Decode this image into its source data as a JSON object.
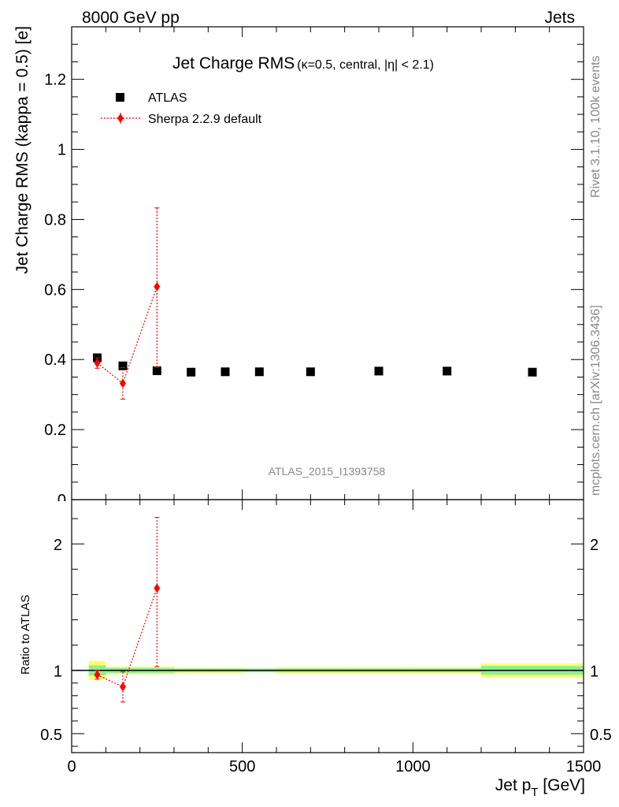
{
  "header": {
    "left": "8000 GeV pp",
    "right": "Jets",
    "title_main": "Jet Charge RMS",
    "title_sub": "(κ=0.5, central, |η| < 2.1)"
  },
  "side_labels": {
    "rivet": "Rivet 3.1.10,  100k events",
    "mcplots": "mcplots.cern.ch [arXiv:1306.3436]"
  },
  "watermark": "ATLAS_2015_I1393758",
  "legend": {
    "data": "ATLAS",
    "mc": "Sherpa 2.2.9 default"
  },
  "colors": {
    "data": "#000000",
    "mc": "#ff0000",
    "band_inner": "#90ee90",
    "band_outer": "#ffff66"
  },
  "chart_data": [
    {
      "type": "scatter",
      "ylabel": "Jet Charge RMS (kappa = 0.5) [e]",
      "xlim": [
        0,
        1500
      ],
      "ylim": [
        0,
        1.35
      ],
      "y_ticks": [
        "0.2",
        "0.4",
        "0.6",
        "0.8",
        "1",
        "1.2"
      ],
      "y_tick_values": [
        0.2,
        0.4,
        0.6,
        0.8,
        1.0,
        1.2
      ],
      "series": [
        {
          "name": "ATLAS",
          "x": [
            75,
            150,
            250,
            350,
            450,
            550,
            700,
            900,
            1100,
            1350
          ],
          "y": [
            0.405,
            0.382,
            0.368,
            0.364,
            0.365,
            0.365,
            0.365,
            0.367,
            0.367,
            0.364
          ]
        },
        {
          "name": "Sherpa 2.2.9 default",
          "x": [
            75,
            150,
            250
          ],
          "y": [
            0.39,
            0.332,
            0.608
          ],
          "yerr_low": [
            0.015,
            0.045,
            0.23
          ],
          "yerr_high": [
            0.015,
            0.045,
            0.225
          ]
        }
      ]
    },
    {
      "type": "scatter",
      "ylabel": "Ratio to ATLAS",
      "xlabel": "Jet p_T [GeV]",
      "xlim": [
        0,
        1500
      ],
      "ylim": [
        0.35,
        2.35
      ],
      "x_ticks": [
        "0",
        "500",
        "1000",
        "1500"
      ],
      "x_tick_values": [
        0,
        500,
        1000,
        1500
      ],
      "y_ticks": [
        "0.5",
        "1",
        "2"
      ],
      "y_tick_values": [
        0.5,
        1,
        2
      ],
      "band_bins": [
        {
          "x": [
            50,
            100
          ],
          "inner": 0.04,
          "outer": 0.075
        },
        {
          "x": [
            100,
            200
          ],
          "inner": 0.02,
          "outer": 0.03
        },
        {
          "x": [
            200,
            300
          ],
          "inner": 0.02,
          "outer": 0.03
        },
        {
          "x": [
            300,
            400
          ],
          "inner": 0.015,
          "outer": 0.02
        },
        {
          "x": [
            400,
            500
          ],
          "inner": 0.015,
          "outer": 0.02
        },
        {
          "x": [
            500,
            600
          ],
          "inner": 0.015,
          "outer": 0.015
        },
        {
          "x": [
            600,
            800
          ],
          "inner": 0.015,
          "outer": 0.025
        },
        {
          "x": [
            800,
            1000
          ],
          "inner": 0.015,
          "outer": 0.025
        },
        {
          "x": [
            1000,
            1200
          ],
          "inner": 0.015,
          "outer": 0.025
        },
        {
          "x": [
            1200,
            1500
          ],
          "inner": 0.035,
          "outer": 0.055
        }
      ],
      "series": [
        {
          "name": "Sherpa 2.2.9 default",
          "x": [
            75,
            150,
            250
          ],
          "y": [
            0.965,
            0.87,
            1.65
          ],
          "yerr_low": [
            0.035,
            0.12,
            0.62
          ],
          "yerr_high": [
            0.035,
            0.12,
            0.56
          ]
        }
      ]
    }
  ]
}
